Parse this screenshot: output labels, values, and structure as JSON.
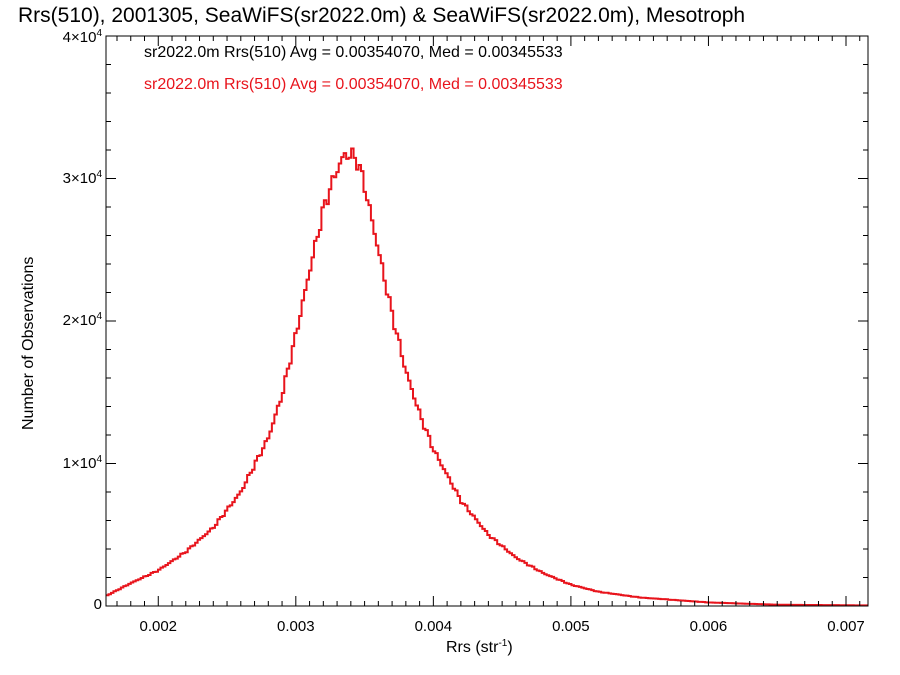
{
  "chart_data": {
    "type": "histogram",
    "title": "Rrs(510), 2001305, SeaWiFS(sr2022.0m) & SeaWiFS(sr2022.0m), Mesotroph",
    "xlabel_base": "Rrs (str",
    "xlabel_exp": "-1",
    "xlabel_end": ")",
    "ylabel": "Number of Observations",
    "xlim": [
      0.00162,
      0.00716
    ],
    "ylim": [
      0,
      40000
    ],
    "x_ticks": [
      "0.002",
      "0.003",
      "0.004",
      "0.005",
      "0.006",
      "0.007"
    ],
    "y_ticks": [
      {
        "mant": "0",
        "exp": ""
      },
      {
        "mant": "1×10",
        "exp": "4"
      },
      {
        "mant": "2×10",
        "exp": "4"
      },
      {
        "mant": "3×10",
        "exp": "4"
      },
      {
        "mant": "4×10",
        "exp": "4"
      }
    ],
    "legend": [
      {
        "text": "sr2022.0m Rrs(510) Avg = 0.00354070, Med = 0.00345533",
        "color": "#000000"
      },
      {
        "text": "sr2022.0m Rrs(510) Avg = 0.00354070, Med = 0.00345533",
        "color": "#e8141c"
      }
    ],
    "series": [
      {
        "color": "#e8141c",
        "profile_x": [
          0.00162,
          0.0018,
          0.002,
          0.0022,
          0.0024,
          0.0026,
          0.0028,
          0.0029,
          0.003,
          0.0031,
          0.0032,
          0.00325,
          0.0033,
          0.00335,
          0.0034,
          0.00345,
          0.0035,
          0.0036,
          0.0037,
          0.0038,
          0.0039,
          0.004,
          0.0042,
          0.0044,
          0.0046,
          0.0048,
          0.005,
          0.0052,
          0.0055,
          0.006,
          0.0065,
          0.00716
        ],
        "profile_y": [
          700,
          1600,
          2500,
          3800,
          5500,
          8000,
          11800,
          14800,
          19000,
          23500,
          27800,
          29300,
          30600,
          31600,
          31700,
          31200,
          29500,
          25000,
          20500,
          16500,
          13500,
          11000,
          7400,
          5000,
          3400,
          2300,
          1500,
          1000,
          600,
          250,
          90,
          40
        ]
      }
    ]
  }
}
